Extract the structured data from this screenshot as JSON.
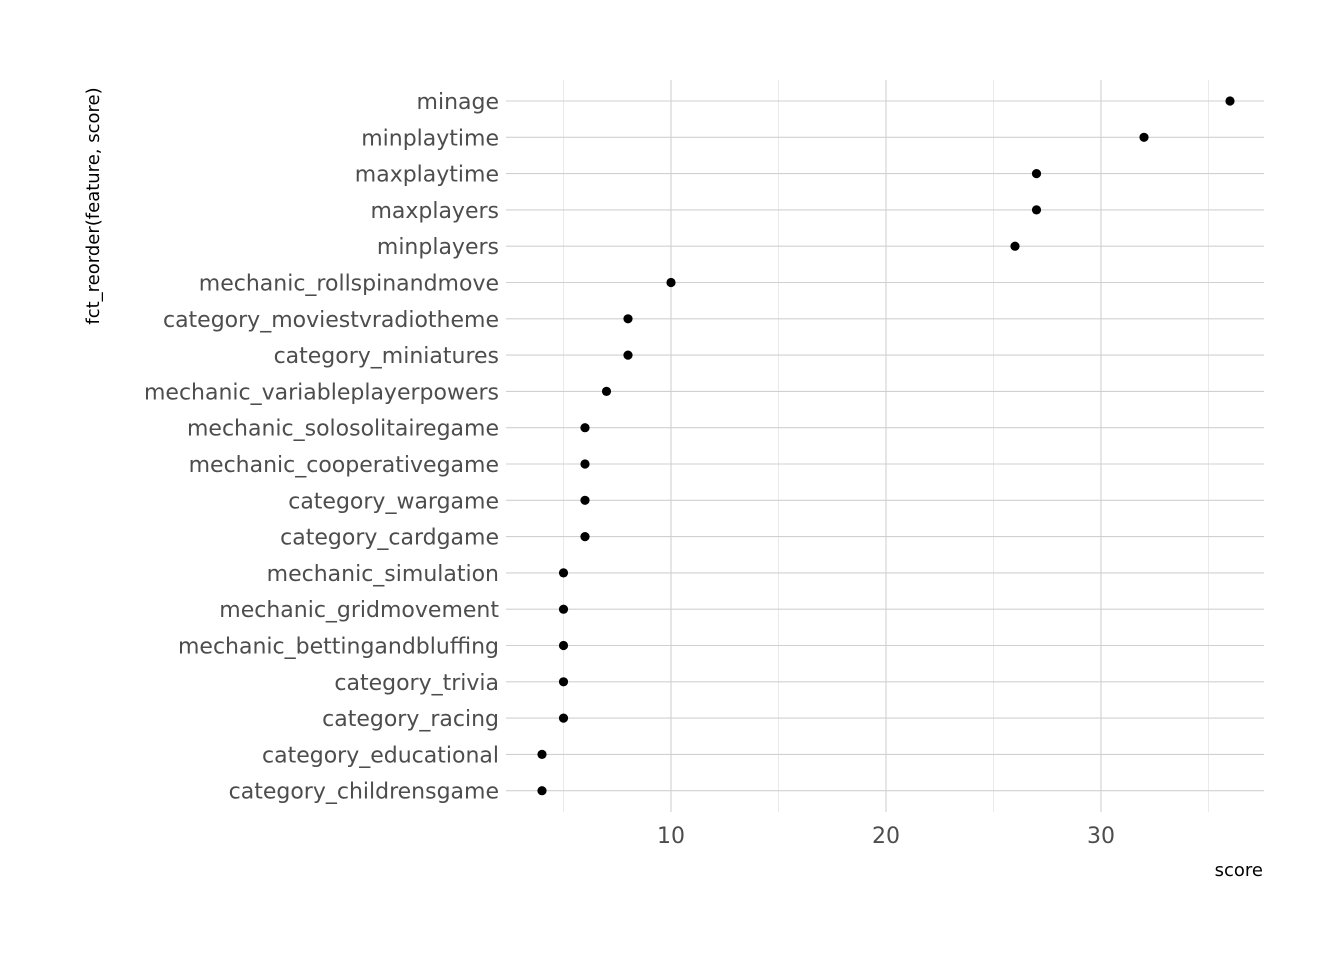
{
  "chart_data": {
    "type": "scatter",
    "title": "",
    "xlabel": "score",
    "ylabel": "fct_reorder(feature, score)",
    "xlim": [
      3,
      37.5
    ],
    "xticks": [
      10,
      20,
      30
    ],
    "grid": true,
    "legend": "none",
    "point_color": "#000000",
    "categories": [
      "minage",
      "minplaytime",
      "maxplaytime",
      "maxplayers",
      "minplayers",
      "mechanic_rollspinandmove",
      "category_moviestvradiotheme",
      "category_miniatures",
      "mechanic_variableplayerpowers",
      "mechanic_solosolitairegame",
      "mechanic_cooperativegame",
      "category_wargame",
      "category_cardgame",
      "mechanic_simulation",
      "mechanic_gridmovement",
      "mechanic_bettingandbluffing",
      "category_trivia",
      "category_racing",
      "category_educational",
      "category_childrensgame"
    ],
    "values": [
      36,
      32,
      27,
      27,
      26,
      10,
      8,
      8,
      7,
      6,
      6,
      6,
      6,
      5,
      5,
      5,
      5,
      5,
      4,
      4
    ]
  }
}
